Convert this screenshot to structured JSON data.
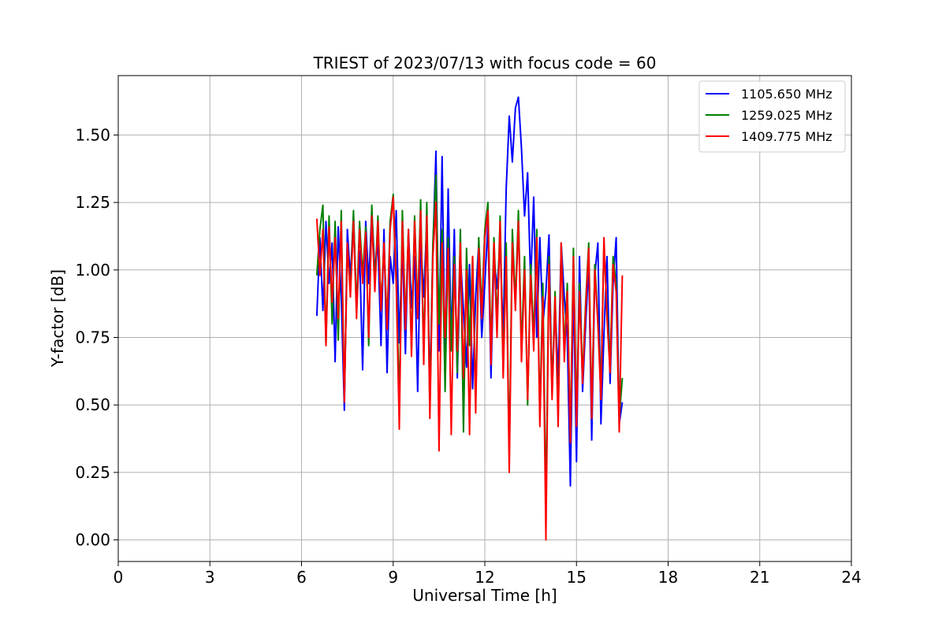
{
  "chart_data": {
    "type": "line",
    "title": "TRIEST of 2023/07/13 with focus code = 60",
    "xlabel": "Universal Time [h]",
    "ylabel": "Y-factor [dB]",
    "xlim": [
      0,
      24
    ],
    "ylim": [
      -0.08,
      1.72
    ],
    "xticks": [
      0,
      3,
      6,
      9,
      12,
      15,
      18,
      21,
      24
    ],
    "xtick_labels": [
      "0",
      "3",
      "6",
      "9",
      "12",
      "15",
      "18",
      "21",
      "24"
    ],
    "yticks": [
      0.0,
      0.25,
      0.5,
      0.75,
      1.0,
      1.25,
      1.5
    ],
    "ytick_labels": [
      "0.00",
      "0.25",
      "0.50",
      "0.75",
      "1.00",
      "1.25",
      "1.50"
    ],
    "grid": true,
    "legend_position": "top-right",
    "series": [
      {
        "name": "1105.650 MHz",
        "color": "#0000ff",
        "x": [
          6.5,
          6.6,
          6.7,
          6.8,
          6.9,
          7.0,
          7.1,
          7.2,
          7.3,
          7.4,
          7.5,
          7.6,
          7.7,
          7.8,
          7.9,
          8.0,
          8.1,
          8.2,
          8.3,
          8.4,
          8.5,
          8.6,
          8.7,
          8.8,
          8.9,
          9.0,
          9.1,
          9.2,
          9.3,
          9.4,
          9.5,
          9.6,
          9.7,
          9.8,
          9.9,
          10.0,
          10.1,
          10.2,
          10.3,
          10.4,
          10.5,
          10.6,
          10.7,
          10.8,
          10.9,
          11.0,
          11.1,
          11.2,
          11.3,
          11.4,
          11.5,
          11.6,
          11.7,
          11.8,
          11.9,
          12.0,
          12.1,
          12.2,
          12.3,
          12.4,
          12.5,
          12.6,
          12.7,
          12.8,
          12.9,
          13.0,
          13.1,
          13.2,
          13.3,
          13.4,
          13.5,
          13.6,
          13.7,
          13.8,
          13.9,
          14.0,
          14.1,
          14.2,
          14.3,
          14.4,
          14.5,
          14.6,
          14.7,
          14.8,
          14.9,
          15.0,
          15.1,
          15.2,
          15.3,
          15.4,
          15.5,
          15.6,
          15.7,
          15.8,
          15.9,
          16.0,
          16.1,
          16.2,
          16.3,
          16.4,
          16.5
        ],
        "y": [
          0.83,
          1.12,
          0.85,
          1.18,
          0.95,
          1.1,
          0.66,
          1.16,
          0.9,
          0.48,
          1.15,
          0.97,
          1.2,
          0.85,
          1.07,
          0.63,
          1.18,
          0.95,
          1.22,
          1.0,
          1.1,
          0.72,
          1.15,
          0.62,
          1.05,
          0.95,
          1.22,
          0.73,
          1.1,
          0.69,
          1.15,
          0.86,
          1.05,
          0.55,
          1.12,
          0.9,
          1.18,
          0.54,
          1.08,
          1.44,
          0.7,
          1.42,
          0.65,
          1.3,
          0.73,
          1.15,
          0.6,
          1.05,
          0.85,
          0.64,
          1.02,
          0.56,
          0.9,
          1.1,
          0.75,
          0.95,
          1.17,
          0.6,
          1.05,
          0.93,
          1.1,
          0.75,
          1.3,
          1.57,
          1.4,
          1.6,
          1.64,
          1.45,
          1.2,
          1.36,
          0.95,
          1.27,
          0.75,
          1.12,
          0.8,
          0.92,
          1.13,
          0.54,
          0.88,
          0.6,
          1.1,
          0.9,
          0.75,
          0.2,
          0.95,
          0.29,
          1.05,
          0.55,
          0.8,
          1.02,
          0.37,
          0.98,
          1.1,
          0.43,
          0.76,
          1.05,
          0.58,
          0.95,
          1.12,
          0.43,
          0.51
        ]
      },
      {
        "name": "1259.025 MHz",
        "color": "#008000",
        "x": [
          6.5,
          6.6,
          6.7,
          6.8,
          6.9,
          7.0,
          7.1,
          7.2,
          7.3,
          7.4,
          7.5,
          7.6,
          7.7,
          7.8,
          7.9,
          8.0,
          8.1,
          8.2,
          8.3,
          8.4,
          8.5,
          8.6,
          8.7,
          8.8,
          8.9,
          9.0,
          9.1,
          9.2,
          9.3,
          9.4,
          9.5,
          9.6,
          9.7,
          9.8,
          9.9,
          10.0,
          10.1,
          10.2,
          10.3,
          10.4,
          10.5,
          10.6,
          10.7,
          10.8,
          10.9,
          11.0,
          11.1,
          11.2,
          11.3,
          11.4,
          11.5,
          11.6,
          11.7,
          11.8,
          11.9,
          12.0,
          12.1,
          12.2,
          12.3,
          12.4,
          12.5,
          12.6,
          12.7,
          12.8,
          12.9,
          13.0,
          13.1,
          13.2,
          13.3,
          13.4,
          13.5,
          13.6,
          13.7,
          13.8,
          13.9,
          14.0,
          14.1,
          14.2,
          14.3,
          14.4,
          14.5,
          14.6,
          14.7,
          14.8,
          14.9,
          15.0,
          15.1,
          15.2,
          15.3,
          15.4,
          15.5,
          15.6,
          15.7,
          15.8,
          15.9,
          16.0,
          16.1,
          16.2,
          16.3,
          16.4,
          16.5
        ],
        "y": [
          0.98,
          1.15,
          1.24,
          0.72,
          1.2,
          0.8,
          1.18,
          0.74,
          1.22,
          0.52,
          1.08,
          0.92,
          1.22,
          0.85,
          1.18,
          0.98,
          1.16,
          0.72,
          1.24,
          0.95,
          1.2,
          0.86,
          1.1,
          0.8,
          1.18,
          1.28,
          0.98,
          0.5,
          1.22,
          0.8,
          1.15,
          0.7,
          1.2,
          0.85,
          1.26,
          0.68,
          1.25,
          0.48,
          1.1,
          1.35,
          0.8,
          1.15,
          0.55,
          1.12,
          0.7,
          1.05,
          0.62,
          1.15,
          0.4,
          1.08,
          0.72,
          1.05,
          0.5,
          1.12,
          0.85,
          1.15,
          1.25,
          0.7,
          1.12,
          0.8,
          1.2,
          0.62,
          1.1,
          0.3,
          1.15,
          0.88,
          1.22,
          0.7,
          1.05,
          0.5,
          1.02,
          0.75,
          1.15,
          0.45,
          0.95,
          0.12,
          1.05,
          0.55,
          0.92,
          0.45,
          1.1,
          0.7,
          0.95,
          0.38,
          1.08,
          0.45,
          0.95,
          0.6,
          0.88,
          1.1,
          0.47,
          1.02,
          0.82,
          0.55,
          1.1,
          0.85,
          0.65,
          1.05,
          0.95,
          0.45,
          0.6
        ]
      },
      {
        "name": "1409.775 MHz",
        "color": "#ff0000",
        "x": [
          6.5,
          6.6,
          6.7,
          6.8,
          6.9,
          7.0,
          7.1,
          7.2,
          7.3,
          7.4,
          7.5,
          7.6,
          7.7,
          7.8,
          7.9,
          8.0,
          8.1,
          8.2,
          8.3,
          8.4,
          8.5,
          8.6,
          8.7,
          8.8,
          8.9,
          9.0,
          9.1,
          9.2,
          9.3,
          9.4,
          9.5,
          9.6,
          9.7,
          9.8,
          9.9,
          10.0,
          10.1,
          10.2,
          10.3,
          10.4,
          10.5,
          10.6,
          10.7,
          10.8,
          10.9,
          11.0,
          11.1,
          11.2,
          11.3,
          11.4,
          11.5,
          11.6,
          11.7,
          11.8,
          11.9,
          12.0,
          12.1,
          12.2,
          12.3,
          12.4,
          12.5,
          12.6,
          12.7,
          12.8,
          12.9,
          13.0,
          13.1,
          13.2,
          13.3,
          13.4,
          13.5,
          13.6,
          13.7,
          13.8,
          13.9,
          14.0,
          14.1,
          14.2,
          14.3,
          14.4,
          14.5,
          14.6,
          14.7,
          14.8,
          14.9,
          15.0,
          15.1,
          15.2,
          15.3,
          15.4,
          15.5,
          15.6,
          15.7,
          15.8,
          15.9,
          16.0,
          16.1,
          16.2,
          16.3,
          16.4,
          16.5
        ],
        "y": [
          1.19,
          0.98,
          1.15,
          0.72,
          1.16,
          0.88,
          1.12,
          0.82,
          1.18,
          0.51,
          1.1,
          0.9,
          1.18,
          0.82,
          1.15,
          0.95,
          1.14,
          0.75,
          1.2,
          0.92,
          1.18,
          0.85,
          1.1,
          0.78,
          1.15,
          1.27,
          0.95,
          0.41,
          1.18,
          0.78,
          1.15,
          0.68,
          1.18,
          0.82,
          1.22,
          0.65,
          1.2,
          0.45,
          1.05,
          1.25,
          0.33,
          1.1,
          0.75,
          1.08,
          0.39,
          1.02,
          0.7,
          1.1,
          0.6,
          1.0,
          0.39,
          1.05,
          0.47,
          1.08,
          0.82,
          1.12,
          1.22,
          0.65,
          1.1,
          0.75,
          1.18,
          0.6,
          1.05,
          0.25,
          1.1,
          0.85,
          1.18,
          0.66,
          1.0,
          0.52,
          0.98,
          0.7,
          1.12,
          0.42,
          0.9,
          0.0,
          1.02,
          0.52,
          0.9,
          0.42,
          1.1,
          0.66,
          0.92,
          0.36,
          1.05,
          0.42,
          0.92,
          0.58,
          0.86,
          1.08,
          0.45,
          1.0,
          0.8,
          0.52,
          1.12,
          0.82,
          0.62,
          1.02,
          0.92,
          0.4,
          0.98
        ]
      }
    ]
  }
}
